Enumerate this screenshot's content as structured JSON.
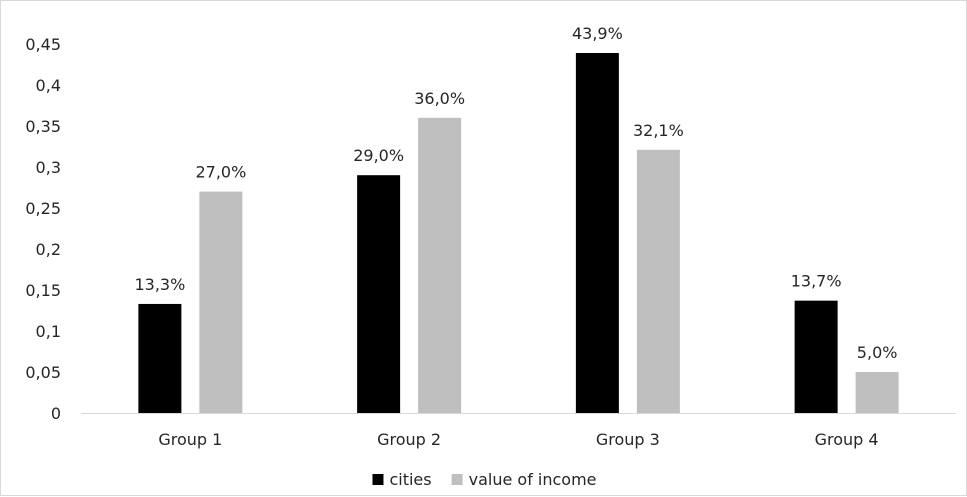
{
  "chart_data": {
    "type": "bar",
    "title": "",
    "xlabel": "",
    "ylabel": "",
    "ylim": [
      0,
      0.45
    ],
    "yticks": [
      {
        "value": 0,
        "label": "0"
      },
      {
        "value": 0.05,
        "label": "0,05"
      },
      {
        "value": 0.1,
        "label": "0,1"
      },
      {
        "value": 0.15,
        "label": "0,15"
      },
      {
        "value": 0.2,
        "label": "0,2"
      },
      {
        "value": 0.25,
        "label": "0,25"
      },
      {
        "value": 0.3,
        "label": "0,3"
      },
      {
        "value": 0.35,
        "label": "0,35"
      },
      {
        "value": 0.4,
        "label": "0,4"
      },
      {
        "value": 0.45,
        "label": "0,45"
      }
    ],
    "categories": [
      "Group 1",
      "Group 2",
      "Group 3",
      "Group 4"
    ],
    "series": [
      {
        "name": "cities",
        "color": "#000000",
        "values": [
          0.133,
          0.29,
          0.439,
          0.137
        ],
        "labels": [
          "13,3%",
          "29,0%",
          "43,9%",
          "13,7%"
        ]
      },
      {
        "name": "value of income",
        "color": "#bfbfbf",
        "values": [
          0.27,
          0.36,
          0.321,
          0.05
        ],
        "labels": [
          "27,0%",
          "36,0%",
          "32,1%",
          "5,0%"
        ]
      }
    ],
    "grid": false,
    "legend_position": "bottom"
  }
}
